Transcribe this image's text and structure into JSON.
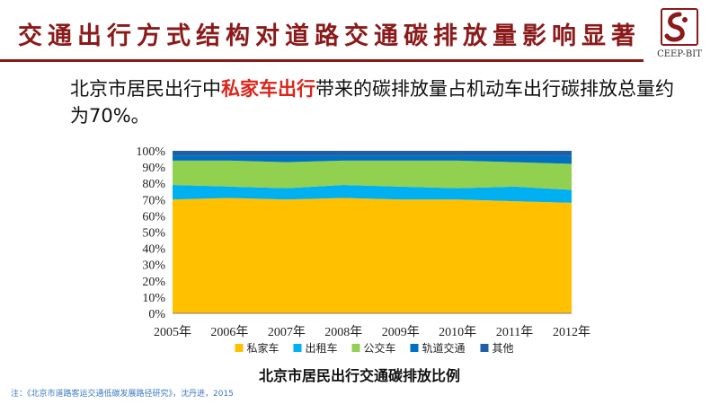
{
  "slide": {
    "title": "交通出行方式结构对道路交通碳排放量影响显著",
    "logo_text": "CEEP-BIT",
    "headline_prefix": "北京市居民出行中",
    "headline_highlight": "私家车出行",
    "headline_suffix": "带来的碳排放量占机动车出行碳排放总量约为70%。",
    "caption": "北京市居民出行交通碳排放比例",
    "footnote": "注：《北京市道路客运交通低碳发展路径研究》，沈丹进，2015"
  },
  "chart_data": {
    "type": "area",
    "stacked": true,
    "title": "",
    "xlabel": "",
    "ylabel": "",
    "categories": [
      "2005年",
      "2006年",
      "2007年",
      "2008年",
      "2009年",
      "2010年",
      "2011年",
      "2012年"
    ],
    "y_ticks": [
      "0%",
      "10%",
      "20%",
      "30%",
      "40%",
      "50%",
      "60%",
      "70%",
      "80%",
      "90%",
      "100%"
    ],
    "ylim": [
      0,
      100
    ],
    "grid": false,
    "legend_position": "bottom",
    "series": [
      {
        "name": "私家车",
        "color": "#ffc000",
        "values": [
          70,
          71,
          70,
          71,
          70,
          70,
          69,
          68
        ]
      },
      {
        "name": "出租车",
        "color": "#00b0f0",
        "values": [
          9,
          7,
          7,
          8,
          8,
          7,
          9,
          8
        ]
      },
      {
        "name": "公交车",
        "color": "#92d050",
        "values": [
          15,
          16,
          16,
          15,
          16,
          17,
          15,
          16
        ]
      },
      {
        "name": "轨道交通",
        "color": "#0070c0",
        "values": [
          3,
          3,
          4,
          3,
          3,
          3,
          4,
          5
        ]
      },
      {
        "name": "其他",
        "color": "#1f5fa8",
        "values": [
          3,
          3,
          3,
          3,
          3,
          3,
          3,
          3
        ]
      }
    ]
  }
}
